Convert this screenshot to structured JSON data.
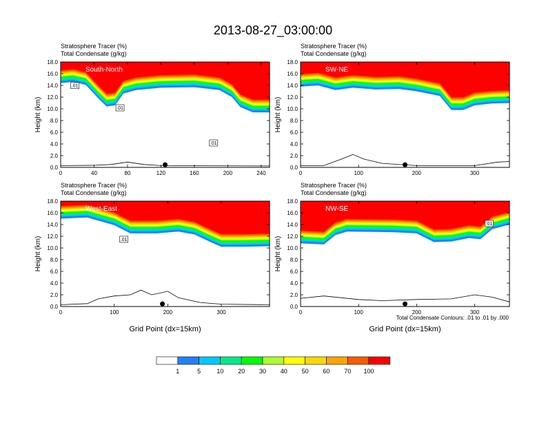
{
  "title": "2013-08-27_03:00:00",
  "colors": {
    "levels": [
      "#ffffff",
      "#1e82ff",
      "#00c8ff",
      "#00eb87",
      "#00ff00",
      "#aaff2d",
      "#ffff00",
      "#ffd700",
      "#ffa500",
      "#ff5a00",
      "#ff0000"
    ]
  },
  "chart_data": [
    {
      "type": "heatmap",
      "name": "South-North",
      "title": "South-North",
      "subtitle_left": "Stratosphere Tracer   (%)",
      "subtitle_left2": "Total Condensate   (g/kg)",
      "xlabel": "",
      "ylabel": "Height (km)",
      "xlim": [
        0,
        250
      ],
      "ylim": [
        0,
        18
      ],
      "xticks": [
        0,
        40,
        80,
        120,
        160,
        200,
        240
      ],
      "yticks": [
        "0.0",
        "2.0",
        "4.0",
        "6.0",
        "8.0",
        "10.0",
        "12.0",
        "14.0",
        "16.0",
        "18.0"
      ],
      "contour_labels": [
        {
          "text": ".01",
          "x": 17,
          "y": 13.8
        },
        {
          "text": ".01",
          "x": 71,
          "y": 10.0
        },
        {
          "text": ".01",
          "x": 183,
          "y": 4.0
        }
      ],
      "tropopause": [
        [
          0,
          14.4
        ],
        [
          15,
          14.6
        ],
        [
          30,
          14.1
        ],
        [
          45,
          11.8
        ],
        [
          55,
          10.4
        ],
        [
          65,
          10.6
        ],
        [
          75,
          12.6
        ],
        [
          90,
          13.2
        ],
        [
          120,
          13.6
        ],
        [
          160,
          13.7
        ],
        [
          190,
          13.2
        ],
        [
          205,
          12.0
        ],
        [
          215,
          10.3
        ],
        [
          230,
          9.4
        ],
        [
          250,
          9.4
        ]
      ],
      "terrain": [
        [
          0,
          0.3
        ],
        [
          40,
          0.35
        ],
        [
          60,
          0.5
        ],
        [
          80,
          0.9
        ],
        [
          100,
          0.5
        ],
        [
          120,
          0.3
        ],
        [
          250,
          0.25
        ]
      ],
      "marker_x": 125
    },
    {
      "type": "heatmap",
      "name": "SW-NE",
      "title": "SW-NE",
      "subtitle_left": "Stratosphere Tracer   (%)",
      "subtitle_left2": "Total Condensate   (g/kg)",
      "xlabel": "",
      "ylabel": "Height (km)",
      "xlim": [
        0,
        360
      ],
      "ylim": [
        0,
        18
      ],
      "xticks": [
        0,
        100,
        200,
        300
      ],
      "yticks": [
        "0.0",
        "2.0",
        "4.0",
        "6.0",
        "8.0",
        "10.0",
        "12.0",
        "14.0",
        "16.0",
        "18.0"
      ],
      "contour_labels": [],
      "tropopause": [
        [
          0,
          13.8
        ],
        [
          30,
          14.0
        ],
        [
          60,
          13.2
        ],
        [
          90,
          13.6
        ],
        [
          130,
          13.3
        ],
        [
          170,
          13.4
        ],
        [
          200,
          13.0
        ],
        [
          240,
          12.2
        ],
        [
          260,
          9.8
        ],
        [
          280,
          9.8
        ],
        [
          300,
          10.6
        ],
        [
          330,
          10.9
        ],
        [
          360,
          11.0
        ]
      ],
      "terrain": [
        [
          0,
          0.3
        ],
        [
          40,
          0.3
        ],
        [
          70,
          1.4
        ],
        [
          90,
          2.2
        ],
        [
          110,
          1.4
        ],
        [
          140,
          0.7
        ],
        [
          200,
          0.3
        ],
        [
          300,
          0.3
        ],
        [
          340,
          0.9
        ],
        [
          360,
          1.0
        ]
      ],
      "marker_x": 180
    },
    {
      "type": "heatmap",
      "name": "West-East",
      "title": "West-East",
      "subtitle_left": "Stratosphere Tracer   (%)",
      "subtitle_left2": "Total Condensate   (g/kg)",
      "xlabel": "Grid Point (dx=15km)",
      "ylabel": "Height (km)",
      "xlim": [
        0,
        390
      ],
      "ylim": [
        0,
        18
      ],
      "xticks": [
        0,
        100,
        200,
        300
      ],
      "yticks": [
        "0.0",
        "2.0",
        "4.0",
        "6.0",
        "8.0",
        "10.0",
        "12.0",
        "14.0",
        "16.0",
        "18.0"
      ],
      "contour_labels": [
        {
          "text": ".01",
          "x": 118,
          "y": 11.3
        }
      ],
      "tropopause": [
        [
          0,
          15.0
        ],
        [
          50,
          15.2
        ],
        [
          100,
          13.9
        ],
        [
          130,
          12.5
        ],
        [
          180,
          12.5
        ],
        [
          220,
          12.8
        ],
        [
          250,
          12.3
        ],
        [
          280,
          11.0
        ],
        [
          300,
          10.2
        ],
        [
          340,
          10.2
        ],
        [
          390,
          10.3
        ]
      ],
      "terrain": [
        [
          0,
          0.3
        ],
        [
          50,
          0.5
        ],
        [
          70,
          1.3
        ],
        [
          100,
          1.8
        ],
        [
          130,
          2.0
        ],
        [
          150,
          2.8
        ],
        [
          170,
          2.0
        ],
        [
          200,
          2.6
        ],
        [
          220,
          1.5
        ],
        [
          260,
          0.7
        ],
        [
          300,
          0.4
        ],
        [
          390,
          0.3
        ]
      ],
      "marker_x": 190
    },
    {
      "type": "heatmap",
      "name": "NW-SE",
      "title": "NW-SE",
      "subtitle_left": "Stratosphere Tracer   (%)",
      "subtitle_left2": "Total Condensate   (g/kg)",
      "xlabel": "Grid Point (dx=15km)",
      "ylabel": "Height (km)",
      "xlim": [
        0,
        360
      ],
      "ylim": [
        0,
        18
      ],
      "xticks": [
        0,
        100,
        200,
        300
      ],
      "yticks": [
        "0.0",
        "2.0",
        "4.0",
        "6.0",
        "8.0",
        "10.0",
        "12.0",
        "14.0",
        "16.0",
        "18.0"
      ],
      "contour_labels": [
        {
          "text": ".01",
          "x": 325,
          "y": 14.0
        }
      ],
      "tropopause": [
        [
          0,
          10.8
        ],
        [
          40,
          10.6
        ],
        [
          60,
          12.2
        ],
        [
          80,
          12.8
        ],
        [
          160,
          12.7
        ],
        [
          200,
          12.5
        ],
        [
          230,
          11.0
        ],
        [
          260,
          11.1
        ],
        [
          290,
          11.7
        ],
        [
          310,
          11.5
        ],
        [
          330,
          13.2
        ],
        [
          360,
          14.0
        ]
      ],
      "terrain": [
        [
          0,
          1.4
        ],
        [
          40,
          1.8
        ],
        [
          100,
          1.2
        ],
        [
          140,
          1.0
        ],
        [
          200,
          1.2
        ],
        [
          260,
          1.3
        ],
        [
          300,
          2.0
        ],
        [
          330,
          1.6
        ],
        [
          360,
          0.8
        ]
      ],
      "marker_x": 180
    }
  ],
  "contour_note": "Total Condensate Contours: .01 to .01 by .000",
  "colorbar": {
    "labels": [
      "1",
      "5",
      "10",
      "20",
      "30",
      "40",
      "50",
      "60",
      "70",
      "100"
    ]
  }
}
